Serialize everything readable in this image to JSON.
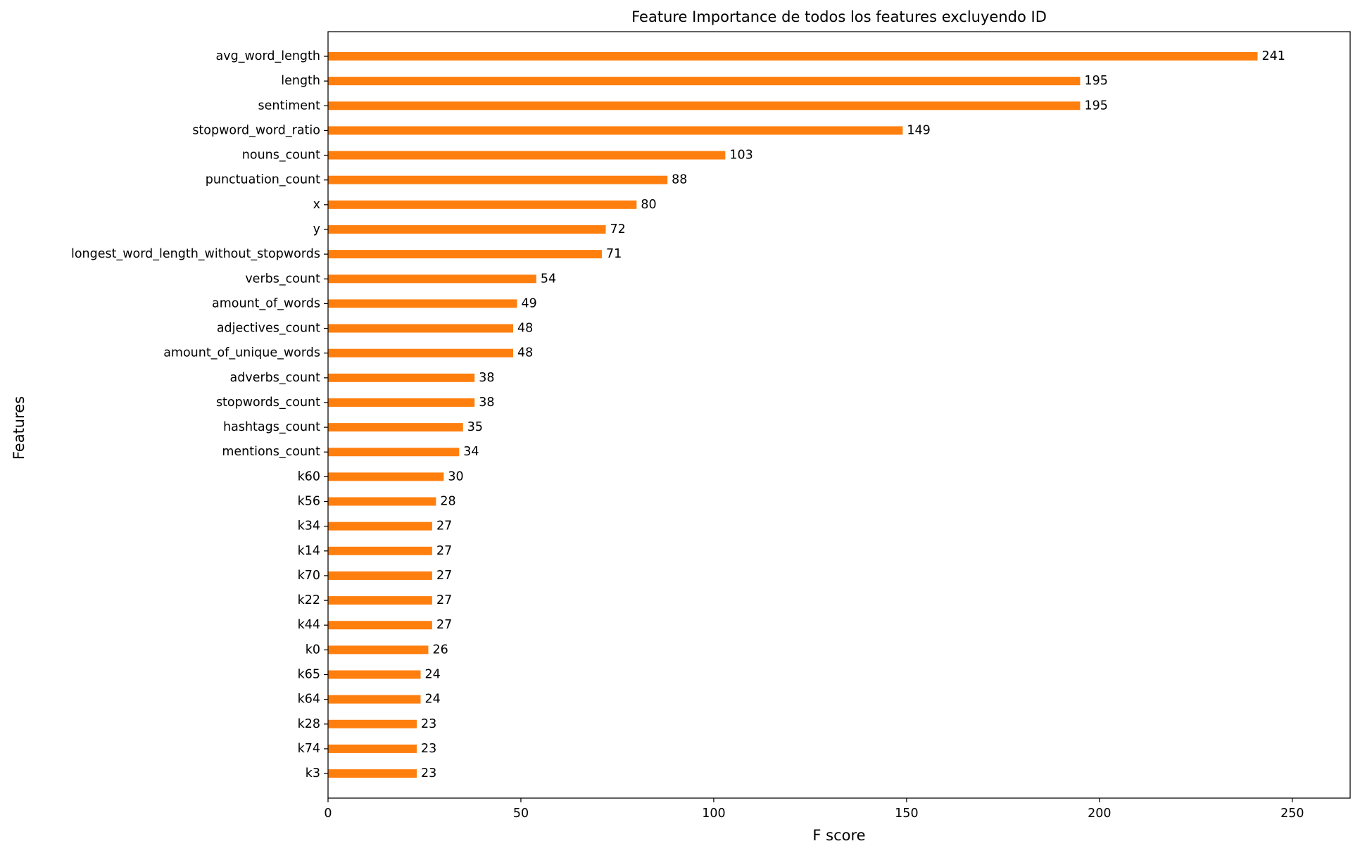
{
  "chart_data": {
    "type": "bar",
    "orientation": "horizontal",
    "title": "Feature Importance de todos los features excluyendo ID",
    "xlabel": "F score",
    "ylabel": "Features",
    "xlim": [
      0,
      265
    ],
    "xticks": [
      0,
      50,
      100,
      150,
      200,
      250
    ],
    "grid": false,
    "bar_color": "#ff7f0e",
    "categories": [
      "avg_word_length",
      "length",
      "sentiment",
      "stopword_word_ratio",
      "nouns_count",
      "punctuation_count",
      "x",
      "y",
      "longest_word_length_without_stopwords",
      "verbs_count",
      "amount_of_words",
      "adjectives_count",
      "amount_of_unique_words",
      "adverbs_count",
      "stopwords_count",
      "hashtags_count",
      "mentions_count",
      "k60",
      "k56",
      "k34",
      "k14",
      "k70",
      "k22",
      "k44",
      "k0",
      "k65",
      "k64",
      "k28",
      "k74",
      "k3"
    ],
    "values": [
      241,
      195,
      195,
      149,
      103,
      88,
      80,
      72,
      71,
      54,
      49,
      48,
      48,
      38,
      38,
      35,
      34,
      30,
      28,
      27,
      27,
      27,
      27,
      27,
      26,
      24,
      24,
      23,
      23,
      23
    ]
  }
}
